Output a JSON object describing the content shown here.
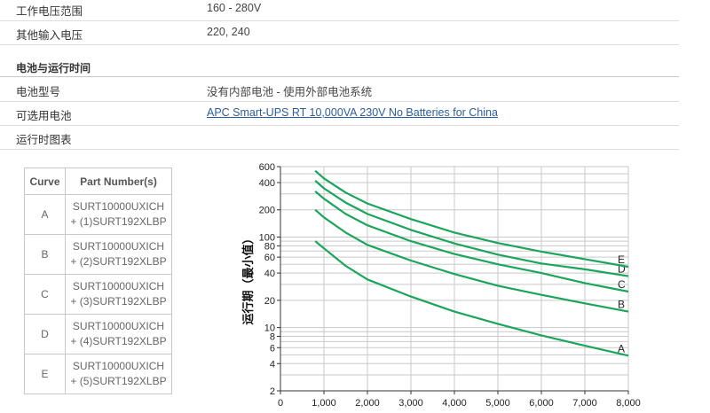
{
  "specs": {
    "voltage_range": {
      "label": "工作电压范围",
      "value": "160 - 280V"
    },
    "other_input": {
      "label": "其他输入电压",
      "value": "220, 240"
    }
  },
  "section": {
    "title": "电池与运行时间"
  },
  "battery": {
    "type_label": "电池型号",
    "type_value": "没有内部电池 - 使用外部电池系统",
    "optional_label": "可选用电池",
    "optional_link": "APC Smart-UPS RT 10,000VA 230V No Batteries for China",
    "runtime_label": "运行时图表"
  },
  "curve_table": {
    "headers": [
      "Curve",
      "Part Number(s)"
    ],
    "rows": [
      {
        "curve": "A",
        "line1": "SURT10000UXICH",
        "line2": "+ (1)SURT192XLBP"
      },
      {
        "curve": "B",
        "line1": "SURT10000UXICH",
        "line2": "+ (2)SURT192XLBP"
      },
      {
        "curve": "C",
        "line1": "SURT10000UXICH",
        "line2": "+ (3)SURT192XLBP"
      },
      {
        "curve": "D",
        "line1": "SURT10000UXICH",
        "line2": "+ (4)SURT192XLBP"
      },
      {
        "curve": "E",
        "line1": "SURT10000UXICH",
        "line2": "+ (5)SURT192XLBP"
      }
    ]
  },
  "chart_data": {
    "type": "line",
    "ylabel": "运行期（最小值）",
    "xlabel": "",
    "y_scale": "log",
    "xlim": [
      0,
      8000
    ],
    "ylim": [
      2,
      600
    ],
    "xticks": [
      0,
      1000,
      2000,
      3000,
      4000,
      5000,
      6000,
      7000,
      8000
    ],
    "xtick_labels": [
      "0",
      "1,000",
      "2,000",
      "3,000",
      "4,000",
      "5,000",
      "6,000",
      "7,000",
      "8,000"
    ],
    "yticks": [
      2,
      4,
      6,
      8,
      10,
      20,
      40,
      60,
      80,
      100,
      200,
      400,
      600
    ],
    "ytick_labels": [
      "2",
      "4",
      "6",
      "8",
      "10",
      "20",
      "40",
      "60",
      "80",
      "100",
      "200",
      "400",
      "600"
    ],
    "grid": true,
    "line_color": "#1aa55a",
    "series": [
      {
        "name": "A",
        "x": [
          800,
          1000,
          1500,
          2000,
          3000,
          4000,
          5000,
          6000,
          7000,
          8000
        ],
        "y": [
          90,
          75,
          48,
          34,
          22,
          15,
          11,
          8.2,
          6.3,
          4.9
        ]
      },
      {
        "name": "B",
        "x": [
          800,
          1000,
          1500,
          2000,
          3000,
          4000,
          5000,
          6000,
          7000,
          8000
        ],
        "y": [
          200,
          165,
          112,
          82,
          55,
          39,
          29,
          23,
          18.5,
          15
        ]
      },
      {
        "name": "C",
        "x": [
          800,
          1000,
          1500,
          2000,
          3000,
          4000,
          5000,
          6000,
          7000,
          8000
        ],
        "y": [
          320,
          265,
          180,
          135,
          90,
          65,
          50,
          40,
          31,
          25
        ]
      },
      {
        "name": "D",
        "x": [
          800,
          1000,
          1500,
          2000,
          3000,
          4000,
          5000,
          6000,
          7000,
          8000
        ],
        "y": [
          420,
          345,
          240,
          180,
          120,
          85,
          64,
          51,
          44,
          37
        ]
      },
      {
        "name": "E",
        "x": [
          800,
          1000,
          1500,
          2000,
          3000,
          4000,
          5000,
          6000,
          7000,
          8000
        ],
        "y": [
          540,
          445,
          310,
          235,
          158,
          112,
          86,
          69,
          57,
          47
        ]
      }
    ]
  }
}
